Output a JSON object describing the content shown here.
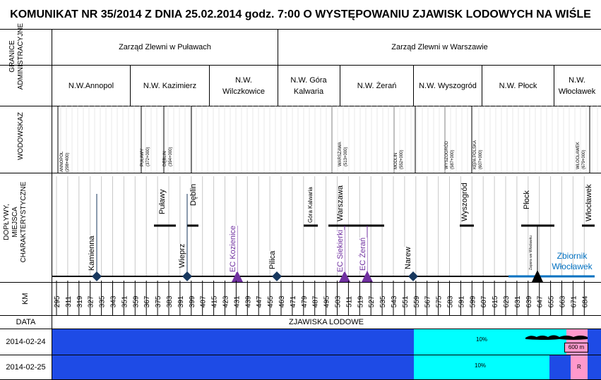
{
  "title": "KOMUNIKAT NR 35/2014 Z DNIA 25.02.2014 godz. 7:00 O WYSTĘPOWANIU ZJAWISK LODOWYCH NA WIŚLE",
  "row_labels": {
    "granice_line1": "GRANICE",
    "granice_line2": "ADMINISTRACYJNE",
    "wodowskaz": "WODOWSKAZ",
    "doplywy_line1": "DOPŁYWY,",
    "doplywy_line2": "MIEJSCA",
    "doplywy_line3": "CHARAKTERYSTYCZNE",
    "km": "KM",
    "data": "DATA"
  },
  "zarzady": [
    {
      "name": "Zarząd Zlewni w Puławach"
    },
    {
      "name": "Zarząd Zlewni w Warszawie"
    }
  ],
  "nadzory": [
    {
      "name": "N.W.Annopol"
    },
    {
      "name": "N.W. Kazimierz"
    },
    {
      "name": "N.W. Wilczkowice"
    },
    {
      "name": "N.W. Góra Kalwaria"
    },
    {
      "name": "N.W. Żerań"
    },
    {
      "name": "N.W. Wyszogród"
    },
    {
      "name": "N.W. Płock"
    },
    {
      "name": "N.W. Włocławek"
    }
  ],
  "gauges": [
    {
      "name": "ANNOPOL",
      "km": "(298+400)"
    },
    {
      "name": "PUŁAWY",
      "km": "(372+000)"
    },
    {
      "name": "DĘBLIN",
      "km": "(394+000)"
    },
    {
      "name": "WARSZAWA",
      "km": "(513+000)"
    },
    {
      "name": "MODLIN",
      "km": "(552+000)"
    },
    {
      "name": "WYSZOGRÓD",
      "km": "(587+000)"
    },
    {
      "name": "KĘPA POLSKA",
      "km": "(607+000)"
    },
    {
      "name": "WŁOCŁAWEK",
      "km": "(679+000)"
    }
  ],
  "places": [
    {
      "name": "Puławy"
    },
    {
      "name": "Dęblin"
    },
    {
      "name": "Góra Kalwaria"
    },
    {
      "name": "Warszawa"
    },
    {
      "name": "Wyszogród"
    },
    {
      "name": "Płock"
    },
    {
      "name": "Włocławek"
    }
  ],
  "tributaries": [
    {
      "name": "Kamienna"
    },
    {
      "name": "Wieprz"
    },
    {
      "name": "Pilica"
    },
    {
      "name": "Narew"
    }
  ],
  "power_plants": [
    {
      "name": "EC Kozienice"
    },
    {
      "name": "EC Siekierki"
    },
    {
      "name": "EC Żerań"
    }
  ],
  "dam_label": "Zapora we Włocławku",
  "reservoir_line1": "Zbiornik",
  "reservoir_line2": "Włocławek",
  "km_ticks": [
    "295",
    "311",
    "319",
    "327",
    "335",
    "343",
    "351",
    "359",
    "367",
    "375",
    "383",
    "391",
    "399",
    "407",
    "415",
    "423",
    "431",
    "439",
    "447",
    "455",
    "463",
    "471",
    "479",
    "487",
    "495",
    "503",
    "511",
    "519",
    "527",
    "535",
    "543",
    "551",
    "559",
    "567",
    "575",
    "583",
    "591",
    "599",
    "607",
    "615",
    "623",
    "631",
    "639",
    "647",
    "655",
    "663",
    "671",
    "684"
  ],
  "zjawiska_header": "ZJAWISKA LODOWE",
  "ice_rows": [
    {
      "date": "2014-02-24",
      "label_a": "10%",
      "label_b": "600 m"
    },
    {
      "date": "2014-02-25",
      "label_a": "10%",
      "label_b": "R"
    }
  ],
  "colors": {
    "no_ice": "#1e4be6",
    "shore_ice": "#00ffff",
    "ice_jam": "#ff99cc",
    "tributary_marker": "#17375e",
    "power_plant_marker": "#7030a0",
    "power_plant_text": "#7030a0",
    "reservoir": "#0070c0"
  }
}
